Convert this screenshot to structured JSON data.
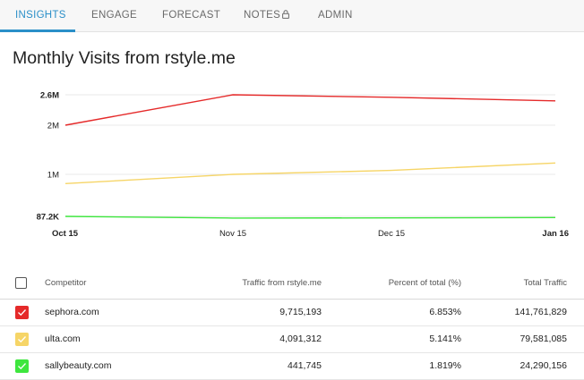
{
  "tabs": [
    {
      "label": "INSIGHTS",
      "active": true
    },
    {
      "label": "ENGAGE"
    },
    {
      "label": "FORECAST"
    },
    {
      "label": "NOTES",
      "icon": "lock-icon"
    },
    {
      "label": "ADMIN"
    }
  ],
  "title": "Monthly Visits from rstyle.me",
  "colors": {
    "accent": "#2b8fc8",
    "sephora": "#e52a2a",
    "ulta": "#f6d567",
    "sallybeauty": "#3ee63e"
  },
  "chart_data": {
    "type": "line",
    "x": [
      "Oct 15",
      "Nov 15",
      "Dec 15",
      "Jan 16"
    ],
    "y_ticks": [
      "87.2K",
      "1M",
      "2M",
      "2.6M"
    ],
    "ylim": [
      87200,
      2600000
    ],
    "grid": true,
    "series": [
      {
        "name": "sephora.com",
        "color": "#e52a2a",
        "values": [
          2000000,
          2600000,
          2550000,
          2480000
        ]
      },
      {
        "name": "ulta.com",
        "color": "#f6d567",
        "values": [
          800000,
          1000000,
          1080000,
          1230000
        ]
      },
      {
        "name": "sallybeauty.com",
        "color": "#3ee63e",
        "values": [
          87200,
          50000,
          55000,
          62000
        ]
      }
    ]
  },
  "table": {
    "headers": {
      "competitor": "Competitor",
      "traffic": "Traffic from rstyle.me",
      "percent": "Percent of total (%)",
      "total": "Total Traffic"
    },
    "rows": [
      {
        "name": "sephora.com",
        "traffic": "9,715,193",
        "percent": "6.853%",
        "total": "141,761,829",
        "color": "#e52a2a"
      },
      {
        "name": "ulta.com",
        "traffic": "4,091,312",
        "percent": "5.141%",
        "total": "79,581,085",
        "color": "#f6d567"
      },
      {
        "name": "sallybeauty.com",
        "traffic": "441,745",
        "percent": "1.819%",
        "total": "24,290,156",
        "color": "#3ee63e"
      }
    ]
  }
}
